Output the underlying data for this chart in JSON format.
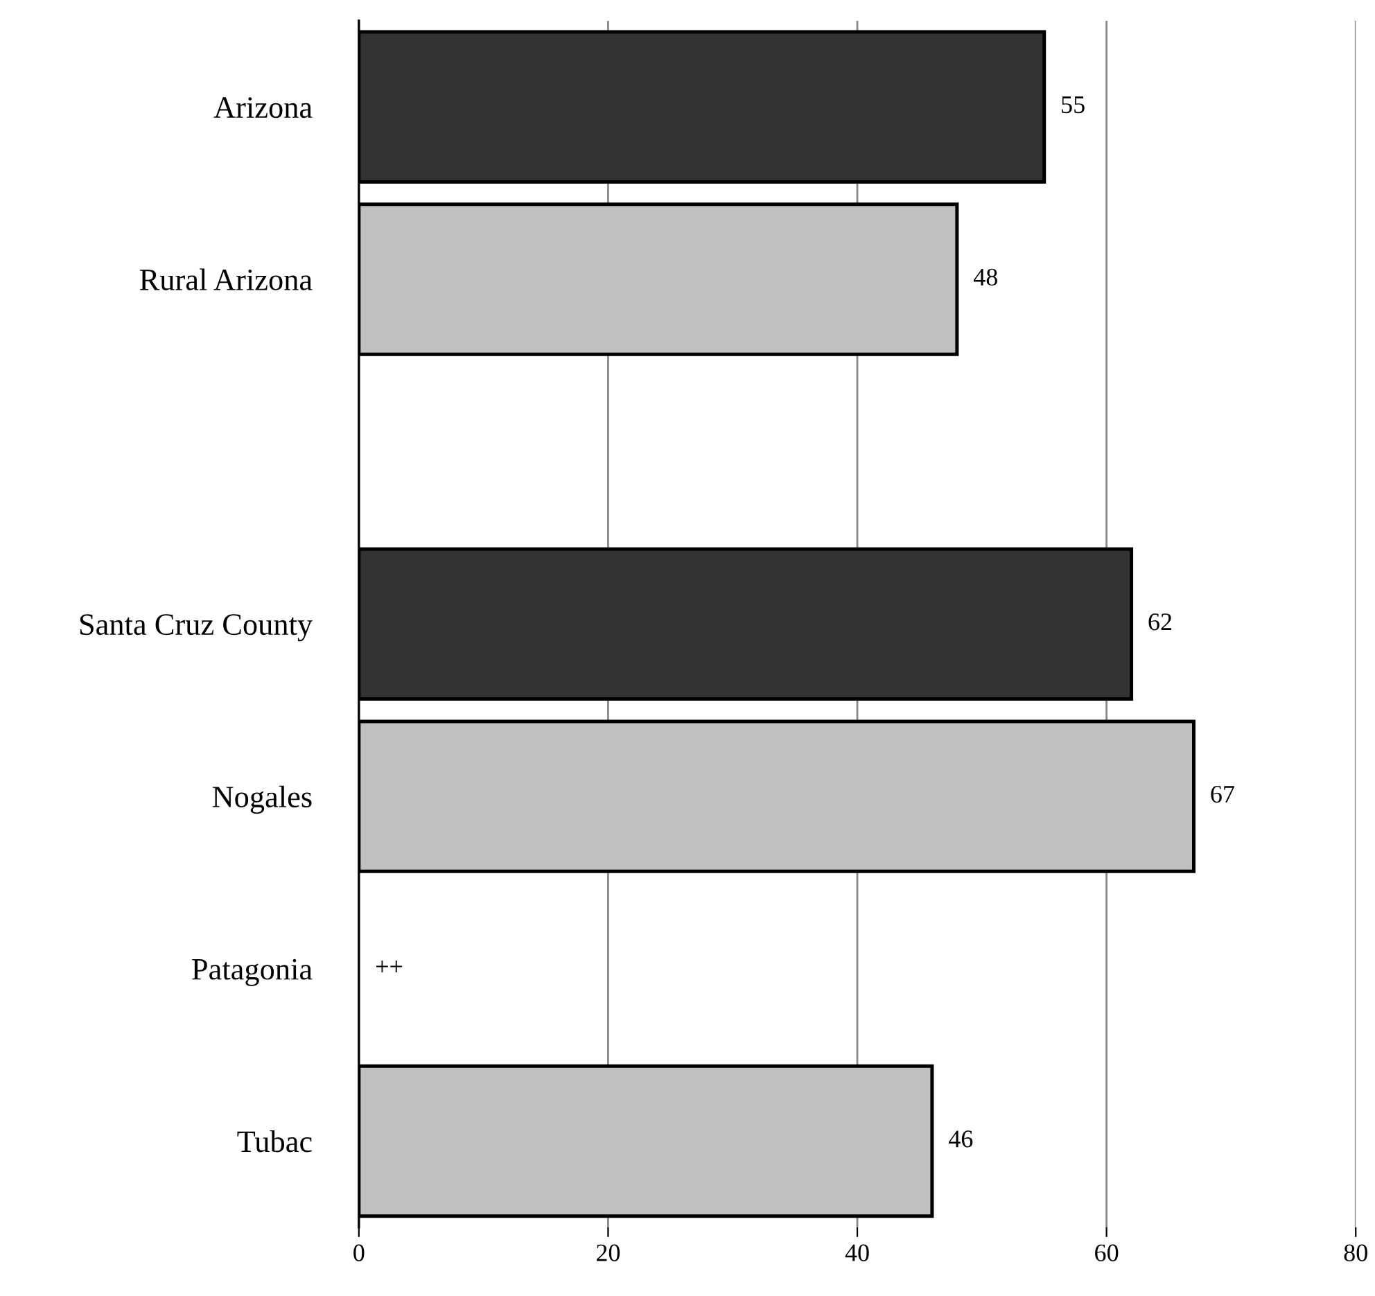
{
  "chart_data": {
    "type": "bar",
    "orientation": "horizontal",
    "categories": [
      "Arizona",
      "Rural Arizona",
      null,
      "Santa Cruz County",
      "Nogales",
      "Patagonia",
      "Tubac"
    ],
    "values": [
      55,
      48,
      null,
      62,
      67,
      null,
      46
    ],
    "colors": [
      "#333333",
      "#c0c0c0",
      "#c0c0c0",
      "#333333",
      "#c0c0c0",
      "#c0c0c0",
      "#c0c0c0"
    ],
    "value_labels": [
      "55",
      "48",
      null,
      "62",
      "67",
      "++",
      "46"
    ],
    "xlim": [
      0,
      80
    ],
    "xticks": [
      0,
      20,
      40,
      60,
      80
    ],
    "grid": "x",
    "legend": false
  }
}
